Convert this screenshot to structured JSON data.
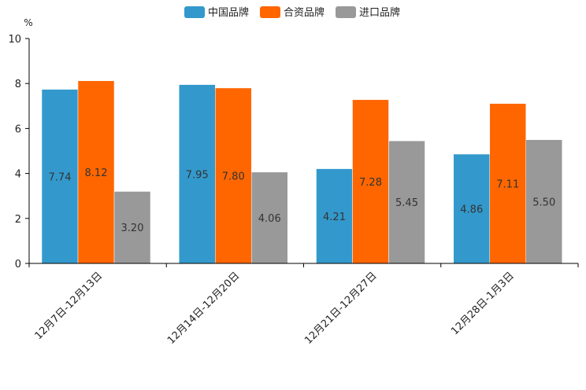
{
  "chart_data": {
    "type": "bar",
    "title": "",
    "xlabel": "",
    "ylabel": "%",
    "ylim": [
      0,
      10
    ],
    "yticks": [
      "0",
      "2",
      "4",
      "6",
      "8",
      "10"
    ],
    "grid": false,
    "legend_position": "top-center",
    "categories": [
      "12月7日-12月13日",
      "12月14日-12月20日",
      "12月21日-12月27日",
      "12月28日-1月3日"
    ],
    "series": [
      {
        "name": "中国品牌",
        "color": "#3399cc",
        "values": [
          7.74,
          7.95,
          4.21,
          4.86
        ],
        "labels": [
          "7.74",
          "7.95",
          "4.21",
          "4.86"
        ]
      },
      {
        "name": "合资品牌",
        "color": "#ff6600",
        "values": [
          8.12,
          7.8,
          7.28,
          7.11
        ],
        "labels": [
          "8.12",
          "7.80",
          "7.28",
          "7.11"
        ]
      },
      {
        "name": "进口品牌",
        "color": "#999999",
        "values": [
          3.2,
          4.06,
          5.45,
          5.5
        ],
        "labels": [
          "3.20",
          "4.06",
          "5.45",
          "5.50"
        ]
      }
    ]
  }
}
